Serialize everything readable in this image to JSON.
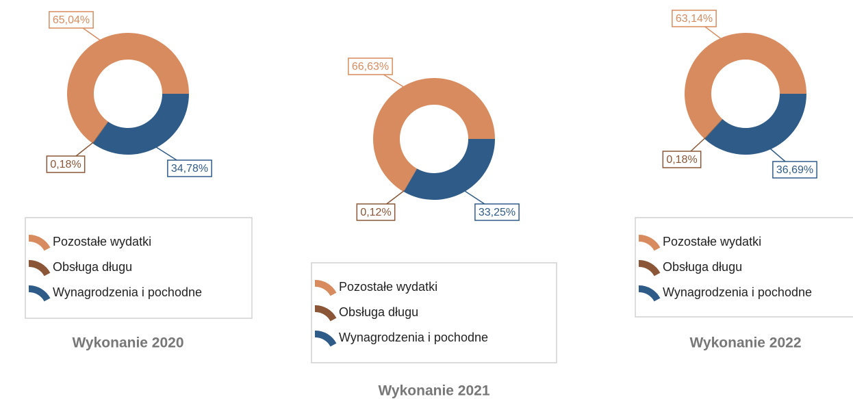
{
  "chart_data": [
    {
      "type": "pie",
      "title": "Wykonanie 2020",
      "categories": [
        "Pozostałe wydatki",
        "Obsługa długu",
        "Wynagrodzenia i pochodne"
      ],
      "values": [
        65.04,
        0.18,
        34.78
      ],
      "value_labels": [
        "65,04%",
        "0,18%",
        "34,78%"
      ],
      "colors": [
        "#d88b5e",
        "#8a5637",
        "#2f5b88"
      ]
    },
    {
      "type": "pie",
      "title": "Wykonanie 2021",
      "categories": [
        "Pozostałe wydatki",
        "Obsługa długu",
        "Wynagrodzenia i pochodne"
      ],
      "values": [
        66.63,
        0.12,
        33.25
      ],
      "value_labels": [
        "66,63%",
        "0,12%",
        "33,25%"
      ],
      "colors": [
        "#d88b5e",
        "#8a5637",
        "#2f5b88"
      ]
    },
    {
      "type": "pie",
      "title": "Wykonanie 2022",
      "categories": [
        "Pozostałe wydatki",
        "Obsługa długu",
        "Wynagrodzenia i pochodne"
      ],
      "values": [
        63.14,
        0.18,
        36.69
      ],
      "value_labels": [
        "63,14%",
        "0,18%",
        "36,69%"
      ],
      "colors": [
        "#d88b5e",
        "#8a5637",
        "#2f5b88"
      ]
    }
  ]
}
